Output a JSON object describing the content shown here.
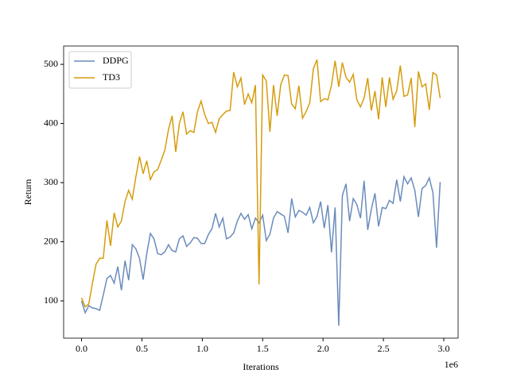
{
  "chart_data": {
    "type": "line",
    "xlabel": "Iterations",
    "ylabel": "Return",
    "x_offset_label": "1e6",
    "x": [
      0.0,
      0.03,
      0.06,
      0.09,
      0.12,
      0.15,
      0.18,
      0.21,
      0.24,
      0.27,
      0.3,
      0.33,
      0.36,
      0.39,
      0.42,
      0.45,
      0.48,
      0.51,
      0.54,
      0.57,
      0.6,
      0.63,
      0.66,
      0.69,
      0.72,
      0.75,
      0.78,
      0.81,
      0.84,
      0.87,
      0.9,
      0.93,
      0.96,
      0.99,
      1.02,
      1.05,
      1.08,
      1.11,
      1.14,
      1.17,
      1.2,
      1.23,
      1.26,
      1.29,
      1.32,
      1.35,
      1.38,
      1.41,
      1.44,
      1.47,
      1.5,
      1.53,
      1.56,
      1.59,
      1.62,
      1.65,
      1.68,
      1.71,
      1.74,
      1.77,
      1.8,
      1.83,
      1.86,
      1.89,
      1.92,
      1.95,
      1.98,
      2.01,
      2.04,
      2.07,
      2.1,
      2.13,
      2.16,
      2.19,
      2.22,
      2.25,
      2.28,
      2.31,
      2.34,
      2.37,
      2.4,
      2.43,
      2.46,
      2.49,
      2.52,
      2.55,
      2.58,
      2.61,
      2.64,
      2.67,
      2.7,
      2.73,
      2.76,
      2.79,
      2.82,
      2.85,
      2.88,
      2.91,
      2.94,
      2.97
    ],
    "series": [
      {
        "name": "DDPG",
        "color": "#6a8cbb",
        "values": [
          100,
          80,
          92,
          88,
          87,
          84,
          110,
          138,
          143,
          130,
          158,
          118,
          168,
          135,
          195,
          188,
          172,
          136,
          180,
          214,
          205,
          180,
          178,
          183,
          195,
          185,
          183,
          205,
          210,
          192,
          198,
          207,
          206,
          197,
          197,
          212,
          222,
          248,
          225,
          240,
          205,
          208,
          215,
          235,
          248,
          238,
          246,
          222,
          240,
          232,
          245,
          202,
          213,
          240,
          251,
          247,
          243,
          215,
          273,
          242,
          253,
          250,
          245,
          258,
          232,
          243,
          268,
          223,
          262,
          182,
          258,
          58,
          278,
          298,
          235,
          273,
          263,
          240,
          303,
          220,
          255,
          282,
          226,
          258,
          256,
          270,
          265,
          305,
          268,
          310,
          298,
          308,
          287,
          242,
          290,
          295,
          308,
          283,
          190,
          301
        ]
      },
      {
        "name": "TD3",
        "color": "#d59c0e",
        "values": [
          105,
          90,
          95,
          130,
          162,
          172,
          172,
          236,
          193,
          249,
          225,
          235,
          268,
          287,
          272,
          310,
          344,
          315,
          337,
          305,
          318,
          322,
          338,
          355,
          390,
          413,
          352,
          400,
          420,
          382,
          388,
          385,
          420,
          438,
          415,
          400,
          402,
          385,
          408,
          415,
          421,
          422,
          487,
          462,
          477,
          432,
          450,
          435,
          465,
          128,
          482,
          472,
          386,
          465,
          413,
          466,
          482,
          481,
          433,
          425,
          464,
          409,
          420,
          435,
          493,
          508,
          437,
          442,
          440,
          465,
          506,
          462,
          503,
          478,
          470,
          483,
          440,
          428,
          443,
          477,
          422,
          455,
          407,
          478,
          428,
          478,
          441,
          455,
          498,
          446,
          448,
          477,
          394,
          488,
          462,
          467,
          423,
          486,
          482,
          443
        ]
      }
    ],
    "xlim": [
      -0.1485,
      3.1185
    ],
    "ylim": [
      37,
      531
    ],
    "xticks": [
      {
        "value": 0,
        "label": "0.0"
      },
      {
        "value": 0.5,
        "label": "0.5"
      },
      {
        "value": 1,
        "label": "1.0"
      },
      {
        "value": 1.5,
        "label": "1.5"
      },
      {
        "value": 2,
        "label": "2.0"
      },
      {
        "value": 2.5,
        "label": "2.5"
      },
      {
        "value": 3,
        "label": "3.0"
      }
    ],
    "yticks": [
      100,
      200,
      300,
      400,
      500
    ],
    "legend": "upper left"
  }
}
